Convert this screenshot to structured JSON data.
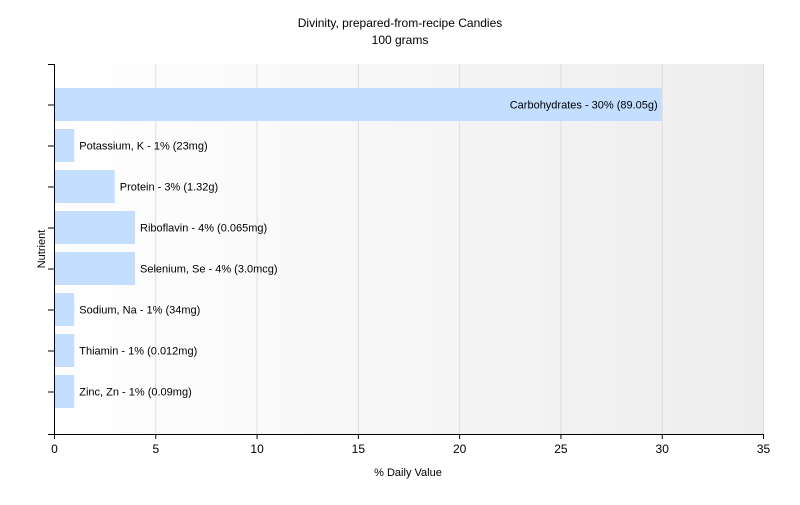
{
  "chart_data": {
    "type": "bar",
    "orientation": "horizontal",
    "title": "Divinity, prepared-from-recipe Candies",
    "subtitle": "100 grams",
    "xlabel": "% Daily Value",
    "ylabel": "Nutrient",
    "xlim": [
      0,
      35
    ],
    "x_ticks": [
      0,
      5,
      10,
      15,
      20,
      25,
      30,
      35
    ],
    "grid": true,
    "bar_color": "#c4deff",
    "bars": [
      {
        "label": "Carbohydrates - 30% (89.05g)",
        "value": 30
      },
      {
        "label": "Potassium, K - 1% (23mg)",
        "value": 1
      },
      {
        "label": "Protein - 3% (1.32g)",
        "value": 3
      },
      {
        "label": "Riboflavin - 4% (0.065mg)",
        "value": 4
      },
      {
        "label": "Selenium, Se - 4% (3.0mcg)",
        "value": 4
      },
      {
        "label": "Sodium, Na - 1% (34mg)",
        "value": 1
      },
      {
        "label": "Thiamin - 1% (0.012mg)",
        "value": 1
      },
      {
        "label": "Zinc, Zn - 1% (0.09mg)",
        "value": 1
      }
    ]
  }
}
